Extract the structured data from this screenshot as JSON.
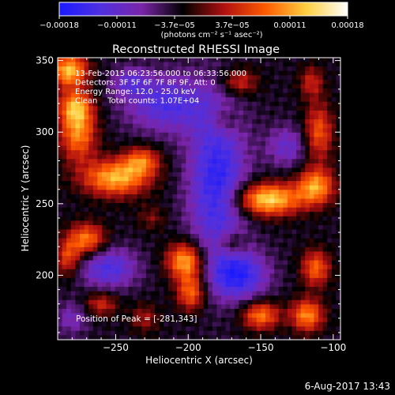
{
  "chart_data": {
    "type": "heatmap",
    "title": "Reconstructed RHESSI Image",
    "xlabel": "Heliocentric X (arcsec)",
    "ylabel": "Heliocentric Y (arcsec)",
    "xlim": [
      -290,
      -95
    ],
    "ylim": [
      155,
      352
    ],
    "x_ticks": [
      -250,
      -200,
      -150,
      -100
    ],
    "x_tick_labels": [
      "−250",
      "−200",
      "−150",
      "−100"
    ],
    "y_ticks": [
      200,
      250,
      300,
      350
    ],
    "y_tick_labels": [
      "200",
      "250",
      "300",
      "350"
    ],
    "colorbar": {
      "range": [
        -0.00018,
        0.00018
      ],
      "tick_labels": [
        "−0.00018",
        "−0.00011",
        "−3.7e−05",
        "3.7e−05",
        "0.00011",
        "0.00018"
      ],
      "units_text": "(photons cm⁻² s⁻¹ asec⁻²)",
      "colors": [
        "#1a1aff",
        "#5030e0",
        "#7a25a8",
        "#000000",
        "#b01010",
        "#ff5a00",
        "#ffd040",
        "#ffffff"
      ]
    },
    "info_lines": [
      "13-Feb-2015 06:23:56.000 to 06:33:56.000",
      "Detectors: 3F 5F 6F 7F 8F 9F, Att: 0",
      "Energy Range: 12.0 - 25.0 keV",
      "Clean    Total counts: 1.07E+04"
    ],
    "peak_label": "Position of Peak = [-281,343]",
    "peak_position": [
      -281,
      343
    ],
    "sources": [
      {
        "x": -282,
        "y": 343,
        "amp": 1.15,
        "sx": 9,
        "sy": 8
      },
      {
        "x": -276,
        "y": 300,
        "amp": 0.95,
        "sx": 9,
        "sy": 14
      },
      {
        "x": -278,
        "y": 318,
        "amp": 0.8,
        "sx": 8,
        "sy": 8
      },
      {
        "x": -250,
        "y": 268,
        "amp": 1.1,
        "sx": 16,
        "sy": 9
      },
      {
        "x": -232,
        "y": 280,
        "amp": 0.75,
        "sx": 9,
        "sy": 7
      },
      {
        "x": -270,
        "y": 225,
        "amp": 0.9,
        "sx": 9,
        "sy": 8
      },
      {
        "x": -283,
        "y": 212,
        "amp": 0.65,
        "sx": 6,
        "sy": 9
      },
      {
        "x": -202,
        "y": 210,
        "amp": 1.1,
        "sx": 9,
        "sy": 9
      },
      {
        "x": -198,
        "y": 188,
        "amp": 0.85,
        "sx": 7,
        "sy": 9
      },
      {
        "x": -165,
        "y": 335,
        "amp": 0.6,
        "sx": 9,
        "sy": 7
      },
      {
        "x": -175,
        "y": 308,
        "amp": 0.35,
        "sx": 7,
        "sy": 7
      },
      {
        "x": -145,
        "y": 253,
        "amp": 1.25,
        "sx": 16,
        "sy": 8
      },
      {
        "x": -112,
        "y": 262,
        "amp": 1.0,
        "sx": 9,
        "sy": 9
      },
      {
        "x": -110,
        "y": 300,
        "amp": 0.75,
        "sx": 7,
        "sy": 14
      },
      {
        "x": -115,
        "y": 335,
        "amp": 0.5,
        "sx": 6,
        "sy": 8
      },
      {
        "x": -150,
        "y": 172,
        "amp": 0.9,
        "sx": 9,
        "sy": 7
      },
      {
        "x": -118,
        "y": 172,
        "amp": 0.95,
        "sx": 8,
        "sy": 8
      },
      {
        "x": -112,
        "y": 205,
        "amp": 0.8,
        "sx": 7,
        "sy": 9
      },
      {
        "x": -170,
        "y": 222,
        "amp": 0.45,
        "sx": 7,
        "sy": 6
      },
      {
        "x": -230,
        "y": 170,
        "amp": 0.4,
        "sx": 7,
        "sy": 7
      },
      {
        "x": -260,
        "y": 180,
        "amp": 0.55,
        "sx": 8,
        "sy": 6
      },
      {
        "x": -225,
        "y": 240,
        "amp": 0.3,
        "sx": 7,
        "sy": 6
      },
      {
        "x": -180,
        "y": 265,
        "amp": -0.9,
        "sx": 14,
        "sy": 40
      },
      {
        "x": -215,
        "y": 320,
        "amp": -0.7,
        "sx": 20,
        "sy": 14
      },
      {
        "x": -255,
        "y": 205,
        "amp": -0.7,
        "sx": 14,
        "sy": 10
      },
      {
        "x": -165,
        "y": 200,
        "amp": -0.85,
        "sx": 14,
        "sy": 12
      },
      {
        "x": -132,
        "y": 290,
        "amp": -0.5,
        "sx": 10,
        "sy": 10
      },
      {
        "x": -240,
        "y": 335,
        "amp": -0.45,
        "sx": 9,
        "sy": 7
      },
      {
        "x": -280,
        "y": 170,
        "amp": -0.4,
        "sx": 8,
        "sy": 8
      }
    ]
  },
  "footer": {
    "timestamp": "6-Aug-2017 13:43"
  }
}
